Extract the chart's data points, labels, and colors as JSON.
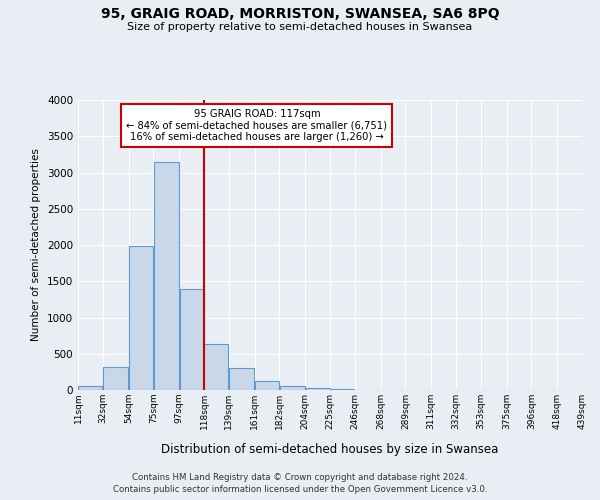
{
  "title": "95, GRAIG ROAD, MORRISTON, SWANSEA, SA6 8PQ",
  "subtitle": "Size of property relative to semi-detached houses in Swansea",
  "xlabel": "Distribution of semi-detached houses by size in Swansea",
  "ylabel": "Number of semi-detached properties",
  "bin_edges": [
    11,
    32,
    54,
    75,
    97,
    118,
    139,
    161,
    182,
    204,
    225,
    246,
    268,
    289,
    311,
    332,
    353,
    375,
    396,
    418,
    439
  ],
  "bin_counts": [
    50,
    320,
    1980,
    3150,
    1390,
    640,
    305,
    130,
    60,
    30,
    10,
    5,
    2,
    1,
    0,
    0,
    0,
    0,
    0,
    0
  ],
  "property_line_x": 118,
  "bar_color": "#c8d8e8",
  "bar_edge_color": "#5b9bd5",
  "line_color": "#cc0000",
  "annotation_title": "95 GRAIG ROAD: 117sqm",
  "annotation_line1": "← 84% of semi-detached houses are smaller (6,751)",
  "annotation_line2": "16% of semi-detached houses are larger (1,260) →",
  "annotation_box_color": "#ffffff",
  "annotation_box_edge": "#cc0000",
  "ylim": [
    0,
    4000
  ],
  "yticks": [
    0,
    500,
    1000,
    1500,
    2000,
    2500,
    3000,
    3500,
    4000
  ],
  "footer_line1": "Contains HM Land Registry data © Crown copyright and database right 2024.",
  "footer_line2": "Contains public sector information licensed under the Open Government Licence v3.0.",
  "background_color": "#e8eef4",
  "grid_color": "#ffffff"
}
